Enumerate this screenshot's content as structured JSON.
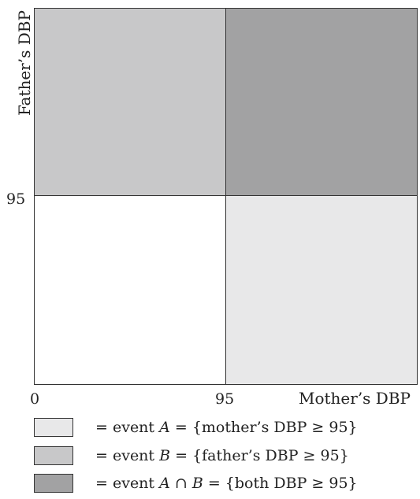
{
  "axes": {
    "y_label": "Father’s DBP",
    "x_label": "Mother’s DBP",
    "y_tick": "95",
    "x_tick_start": "0",
    "x_tick_mid": "95"
  },
  "colors": {
    "event_a_only": "#e8e8e9",
    "event_b_only": "#c8c8c9",
    "event_a_and_b": "#a2a2a3",
    "neither": "#ffffff"
  },
  "legend": [
    {
      "prefix": "= event ",
      "event": "A",
      "suffix": " = {mother’s DBP ≥ 95}"
    },
    {
      "prefix": "= event ",
      "event": "B",
      "suffix": " = {father’s DBP ≥ 95}"
    },
    {
      "prefix": "= event ",
      "event": "A ∩ B",
      "suffix": " = {both DBP ≥ 95}"
    }
  ]
}
